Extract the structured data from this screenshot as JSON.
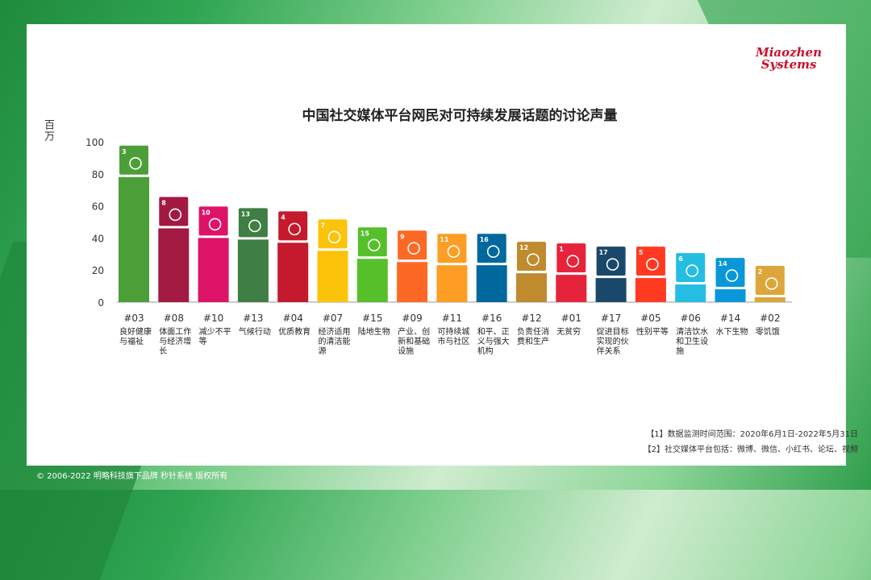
{
  "brand": {
    "line1": "Miaozhen",
    "line2": "Systems"
  },
  "footer": "© 2006-2022 明略科技旗下品牌 秒针系统 版权所有",
  "notes": [
    "【1】数据监测时间范围：2020年6月1日-2022年5月31日",
    "【2】社交媒体平台包括：微博、微信、小红书、论坛、视频"
  ],
  "chart_data": {
    "type": "bar",
    "title": "中国社交媒体平台网民对可持续发展话题的讨论声量",
    "ylabel": "百万",
    "ylim": [
      0,
      100
    ],
    "yticks": [
      0,
      20,
      40,
      60,
      80,
      100
    ],
    "grid": false,
    "categories": [
      "#03",
      "#08",
      "#10",
      "#13",
      "#04",
      "#07",
      "#15",
      "#09",
      "#11",
      "#16",
      "#12",
      "#01",
      "#17",
      "#05",
      "#06",
      "#14",
      "#02"
    ],
    "category_names": [
      "良好健康与福祉",
      "体面工作与经济增长",
      "减少不平等",
      "气候行动",
      "优质教育",
      "经济适用的清洁能源",
      "陆地生物",
      "产业、创新和基础设施",
      "可持续城市与社区",
      "和平、正义与强大机构",
      "负责任消费和生产",
      "无贫穷",
      "促进目标实现的伙伴关系",
      "性别平等",
      "清洁饮水和卫生设施",
      "水下生物",
      "零饥饿"
    ],
    "values": [
      78,
      46,
      40,
      39,
      37,
      32,
      27,
      25,
      23,
      23,
      18,
      17,
      15,
      15,
      11,
      8,
      3
    ],
    "colors": [
      "#4c9f38",
      "#a21942",
      "#dd1367",
      "#3f7e44",
      "#c5192d",
      "#fcc30b",
      "#56c02b",
      "#fd6925",
      "#fd9d24",
      "#00689d",
      "#bf8b2e",
      "#e5243b",
      "#19486a",
      "#ff3a21",
      "#26bde2",
      "#0a97d9",
      "#dda63a"
    ],
    "icons": [
      "heart-pulse-icon",
      "growth-chart-icon",
      "equality-arrows-icon",
      "earth-eye-icon",
      "open-book-icon",
      "sun-icon",
      "tree-icon",
      "cubes-icon",
      "city-icon",
      "dove-icon",
      "infinity-icon",
      "family-icon",
      "flower-icon",
      "gender-icon",
      "water-glass-icon",
      "fish-icon",
      "bowl-icon"
    ]
  }
}
